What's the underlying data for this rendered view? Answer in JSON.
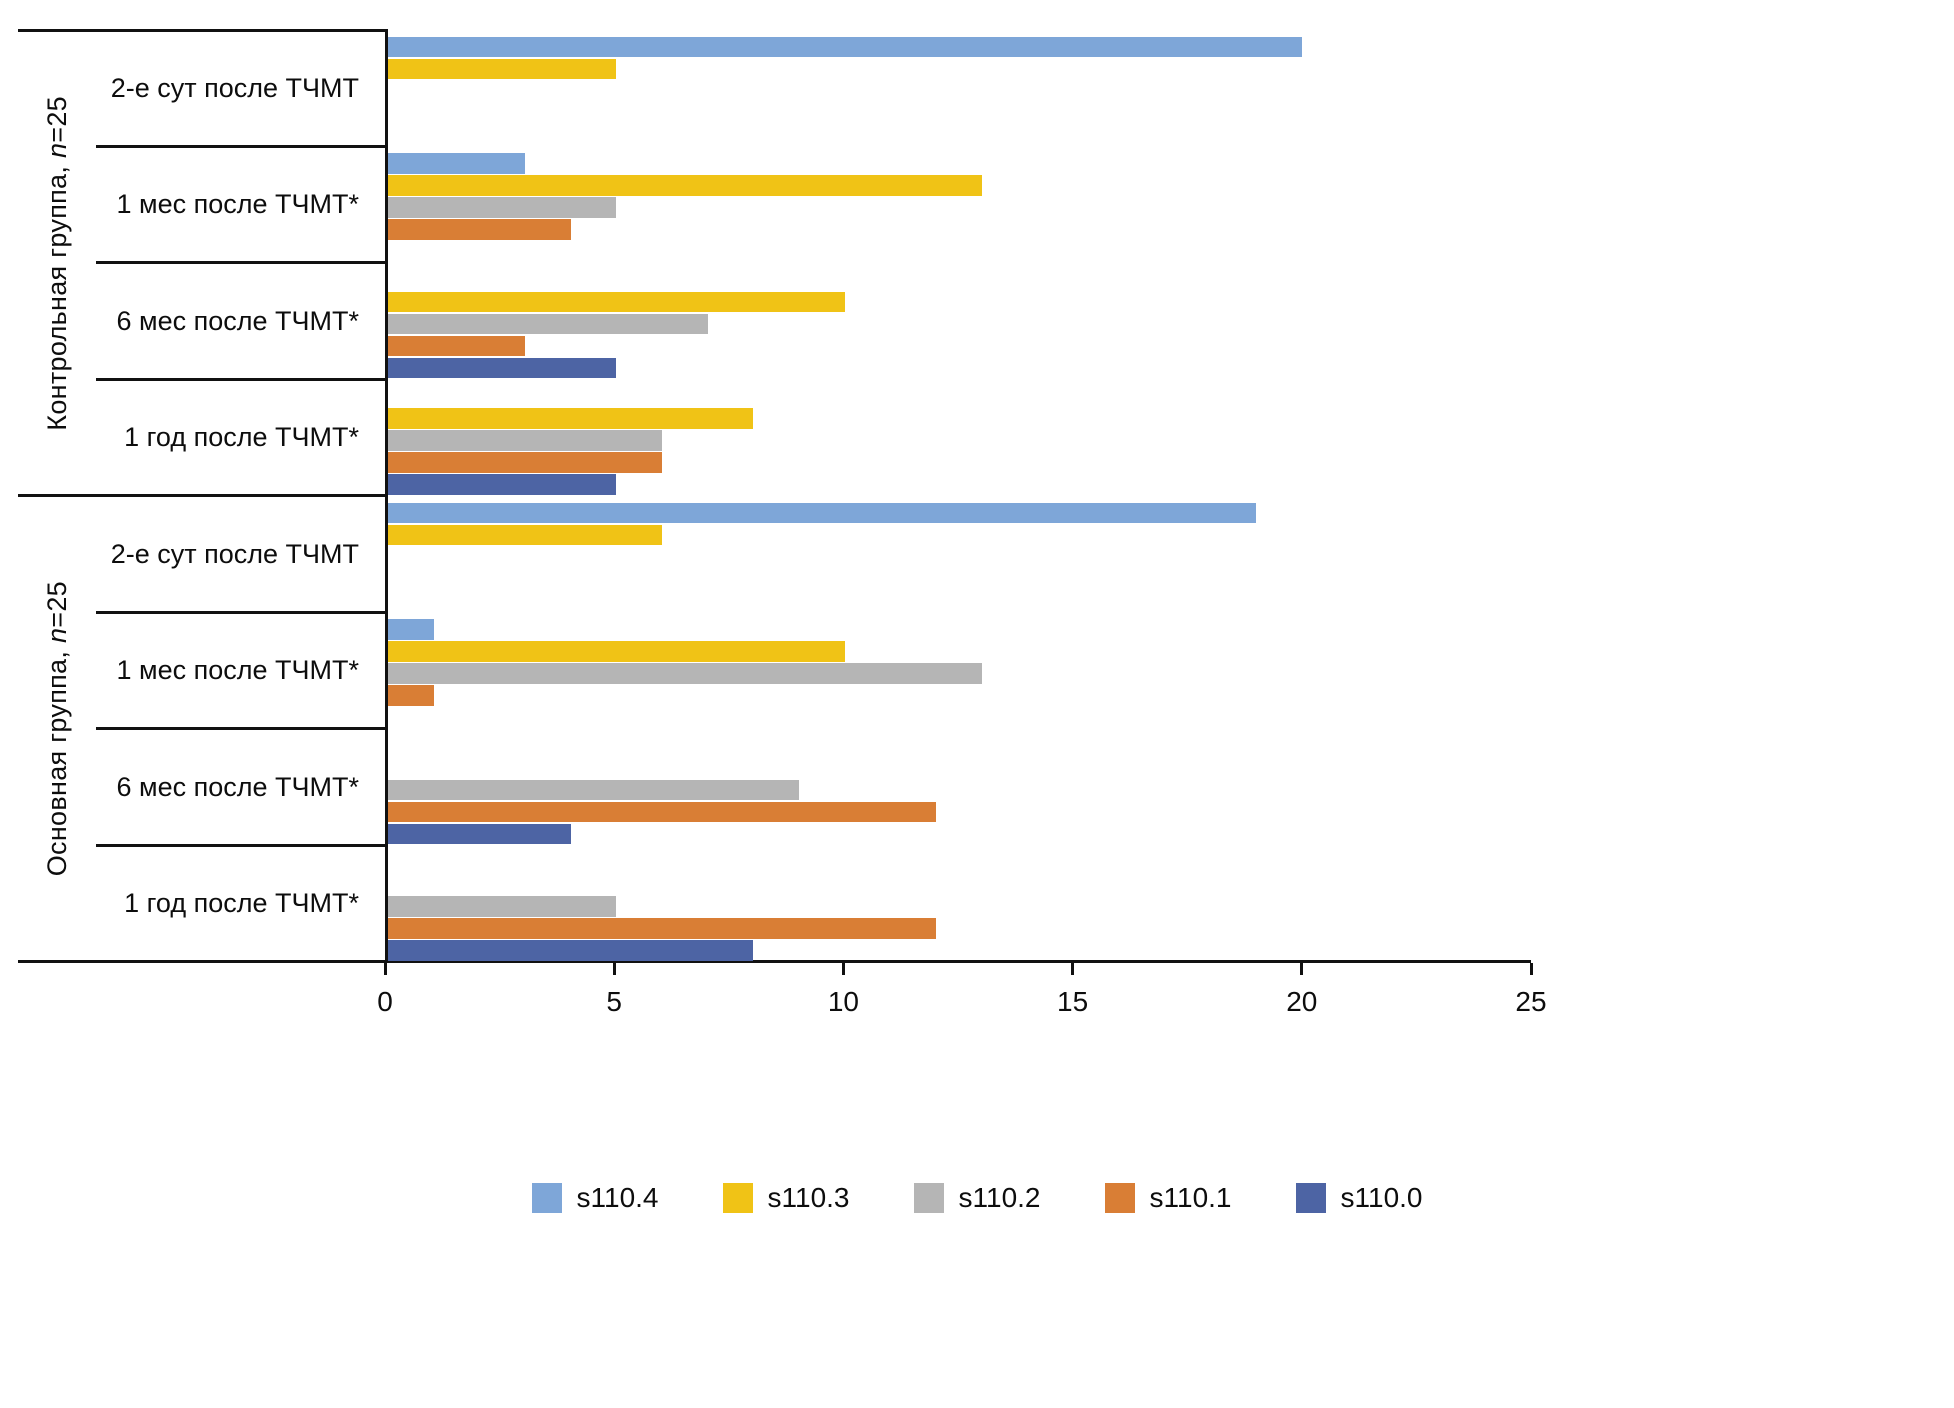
{
  "chart_data": {
    "type": "bar",
    "orientation": "horizontal",
    "title": "",
    "xlabel": "",
    "ylabel": "",
    "xlim": [
      0,
      25
    ],
    "xticks": [
      0,
      5,
      10,
      15,
      20,
      25
    ],
    "grid": false,
    "legend_position": "bottom",
    "series": [
      {
        "name": "s110.4",
        "color": "#7EA6D8"
      },
      {
        "name": "s110.3",
        "color": "#F0C316"
      },
      {
        "name": "s110.2",
        "color": "#B5B5B5"
      },
      {
        "name": "s110.1",
        "color": "#D97E35"
      },
      {
        "name": "s110.0",
        "color": "#4D64A4"
      }
    ],
    "groups": [
      {
        "label_prefix": "Контрольная группа, ",
        "label_italic": "n",
        "label_suffix": "=25",
        "categories": [
          {
            "label": "2-е сут после ТЧМТ",
            "values": [
              20,
              5,
              0,
              0,
              0
            ]
          },
          {
            "label": "1 мес после ТЧМТ*",
            "values": [
              3,
              13,
              5,
              4,
              0
            ]
          },
          {
            "label": "6 мес после ТЧМТ*",
            "values": [
              0,
              10,
              7,
              3,
              5
            ]
          },
          {
            "label": "1 год после ТЧМТ*",
            "values": [
              0,
              8,
              6,
              6,
              5
            ]
          }
        ]
      },
      {
        "label_prefix": "Основная группа, ",
        "label_italic": "n",
        "label_suffix": "=25",
        "categories": [
          {
            "label": "2-е сут после ТЧМТ",
            "values": [
              19,
              6,
              0,
              0,
              0
            ]
          },
          {
            "label": "1 мес после ТЧМТ*",
            "values": [
              1,
              10,
              13,
              1,
              0
            ]
          },
          {
            "label": "6 мес после ТЧМТ*",
            "values": [
              0,
              0,
              9,
              12,
              4
            ]
          },
          {
            "label": "1 год после ТЧМТ*",
            "values": [
              0,
              0,
              5,
              12,
              8
            ]
          }
        ]
      }
    ]
  }
}
